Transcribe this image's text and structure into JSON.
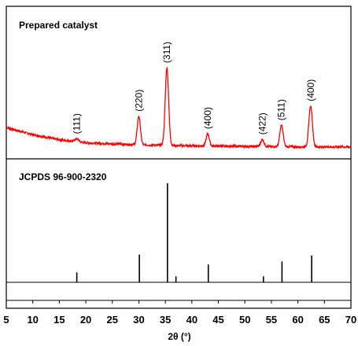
{
  "chart_data": {
    "type": "line",
    "xlabel": "2θ (°)",
    "ylabel": "",
    "xlim": [
      5,
      70
    ],
    "x_ticks": [
      "5",
      "10",
      "15",
      "20",
      "25",
      "30",
      "35",
      "40",
      "45",
      "50",
      "55",
      "60",
      "65",
      "70"
    ],
    "x_tick_values": [
      5,
      10,
      15,
      20,
      25,
      30,
      35,
      40,
      45,
      50,
      55,
      60,
      65,
      70
    ],
    "grid": false,
    "colors": {
      "prepared": "#ff0000",
      "reference": "#000000",
      "axes": "#000000"
    },
    "panels": [
      {
        "title": "Prepared catalyst",
        "series_color": "#ff0000",
        "ylim": [
          0,
          1
        ],
        "baseline": [
          [
            5,
            0.23
          ],
          [
            10,
            0.16
          ],
          [
            15,
            0.11
          ],
          [
            20,
            0.08
          ],
          [
            25,
            0.07
          ],
          [
            30,
            0.06
          ],
          [
            40,
            0.05
          ],
          [
            50,
            0.045
          ],
          [
            60,
            0.04
          ],
          [
            70,
            0.04
          ]
        ],
        "peaks": [
          {
            "label": "(111)",
            "x": 18.3,
            "height": 0.03,
            "width": 0.35
          },
          {
            "label": "(220)",
            "x": 30.0,
            "height": 0.28,
            "width": 0.3
          },
          {
            "label": "(311)",
            "x": 35.3,
            "height": 0.76,
            "width": 0.32
          },
          {
            "label": "(400)",
            "x": 43.0,
            "height": 0.12,
            "width": 0.3
          },
          {
            "label": "(422)",
            "x": 53.3,
            "height": 0.07,
            "width": 0.3
          },
          {
            "label": "(511)",
            "x": 56.9,
            "height": 0.21,
            "width": 0.32
          },
          {
            "label": "(400)",
            "x": 62.4,
            "height": 0.4,
            "width": 0.33
          }
        ],
        "noise": 0.02
      },
      {
        "title": "JCPDS 96-900-2320",
        "series_color": "#000000",
        "ylim": [
          0,
          1
        ],
        "sticks": [
          {
            "x": 18.3,
            "intensity": 0.1
          },
          {
            "x": 30.1,
            "intensity": 0.28
          },
          {
            "x": 35.4,
            "intensity": 1.0
          },
          {
            "x": 37.0,
            "intensity": 0.06
          },
          {
            "x": 43.1,
            "intensity": 0.18
          },
          {
            "x": 53.5,
            "intensity": 0.06
          },
          {
            "x": 57.0,
            "intensity": 0.21
          },
          {
            "x": 62.6,
            "intensity": 0.27
          }
        ]
      }
    ]
  }
}
